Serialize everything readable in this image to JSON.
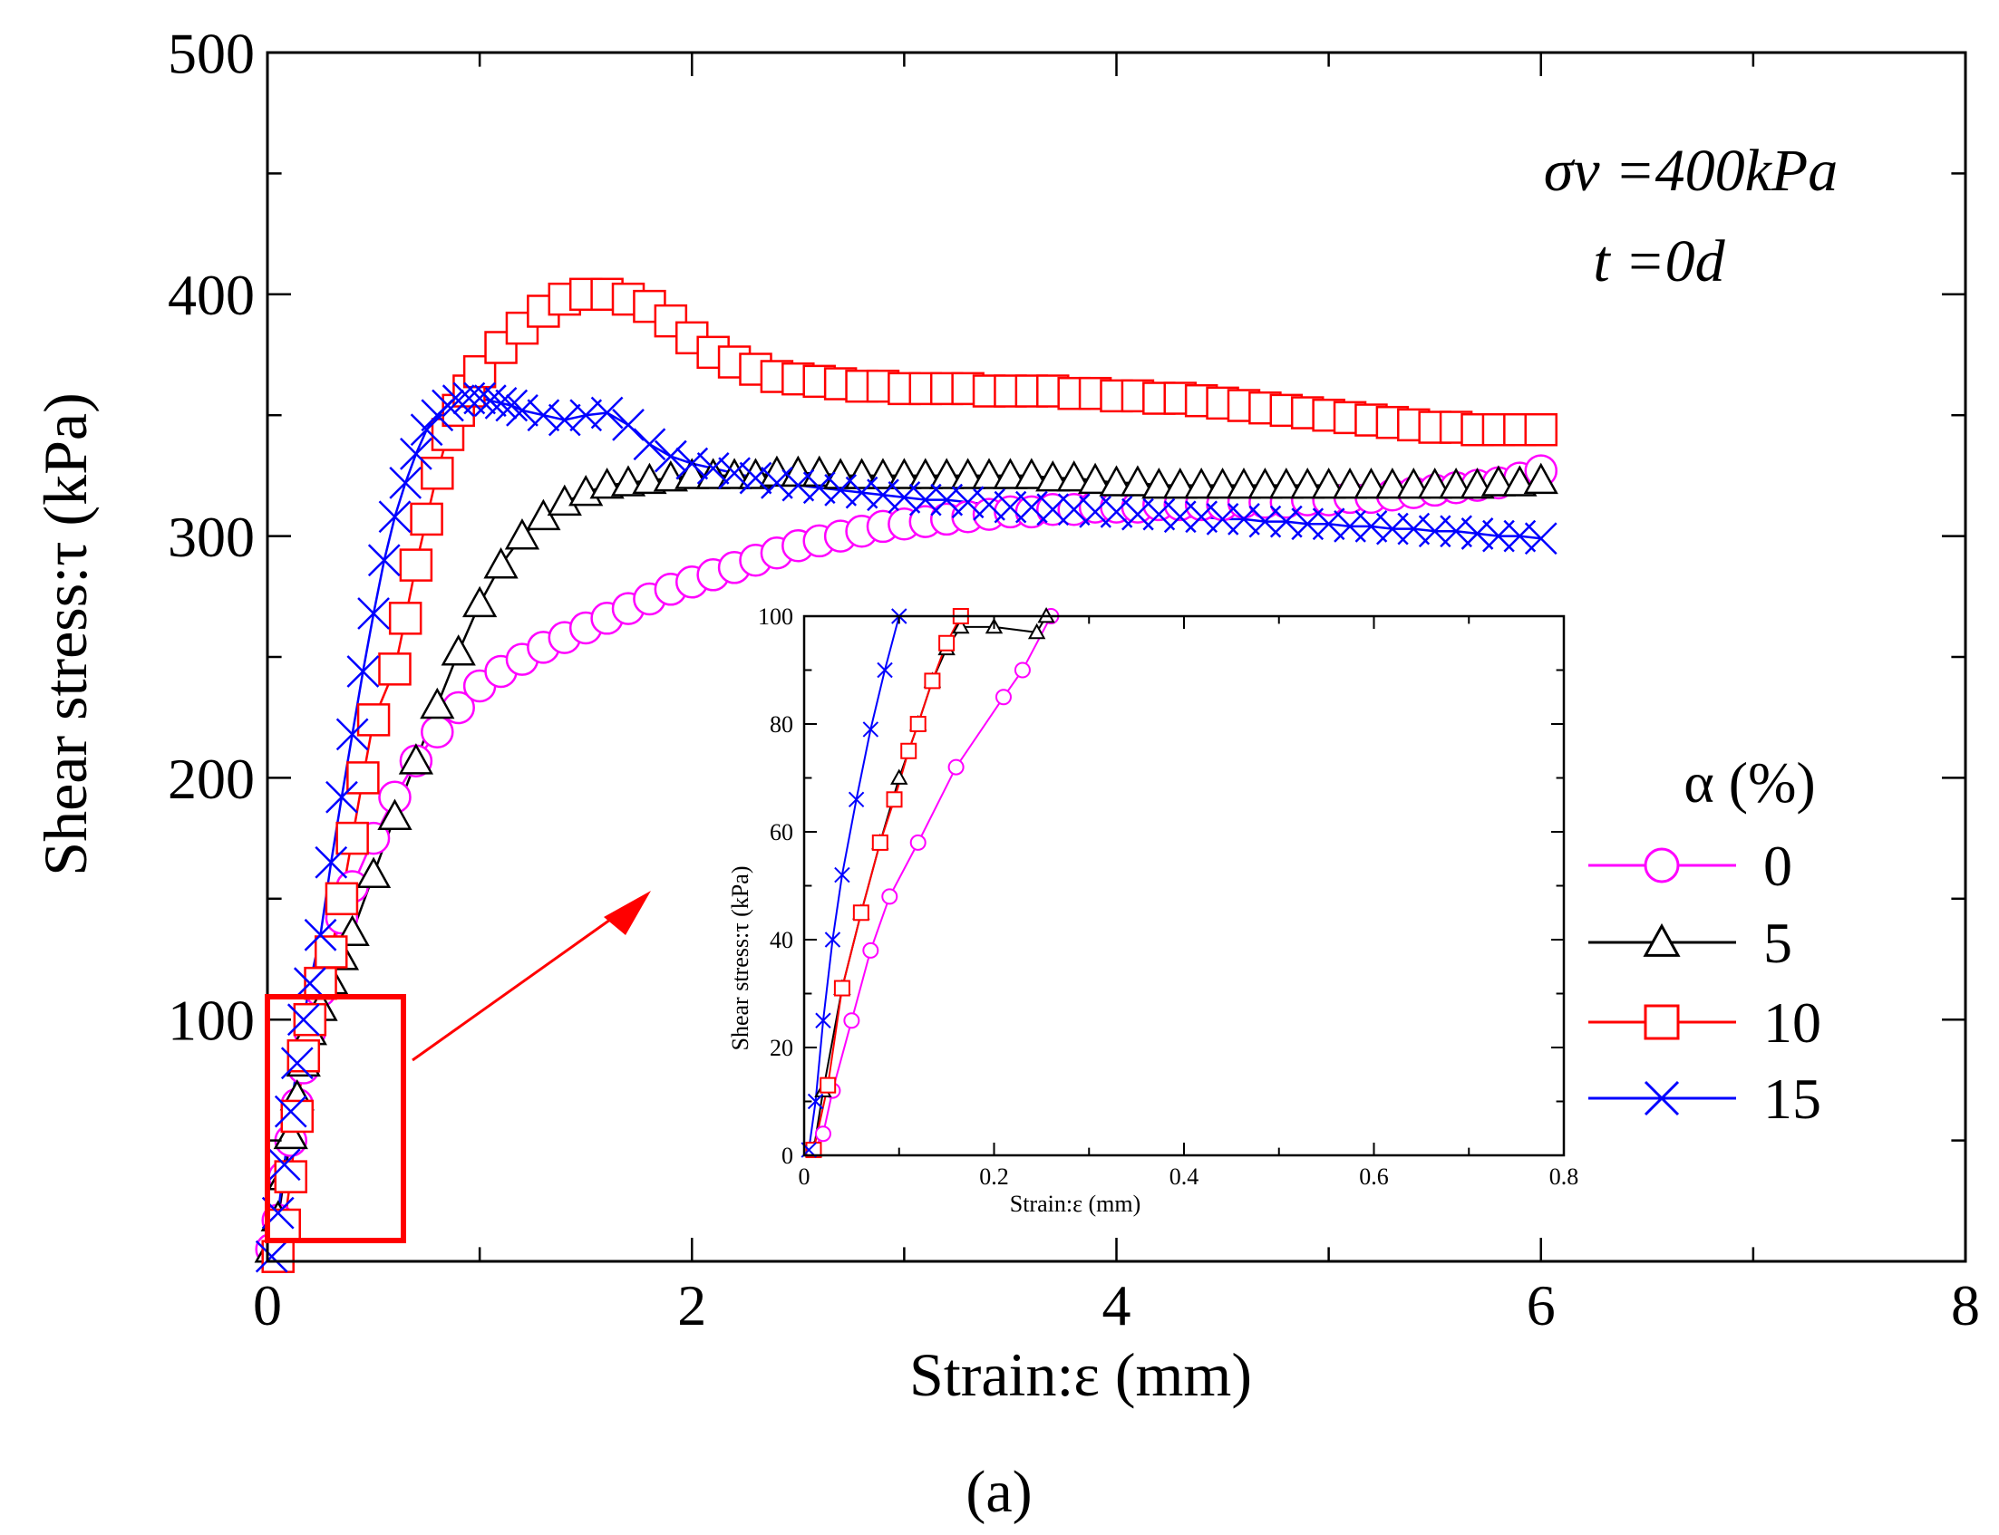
{
  "chart_data": [
    {
      "type": "line",
      "title": "",
      "xlabel": "Strain:ε (mm)",
      "ylabel": "Shear stress:τ (kPa)",
      "xlim": [
        0,
        8
      ],
      "ylim": [
        0,
        500
      ],
      "xticks": [
        0,
        2,
        4,
        6,
        8
      ],
      "yticks": [
        100,
        200,
        300,
        400,
        500
      ],
      "xtick_labels": [
        "0",
        "2",
        "4",
        "6",
        "8"
      ],
      "ytick_labels": [
        "100",
        "200",
        "300",
        "400",
        "500"
      ],
      "legend_title": "α (%)",
      "legend_position": "right",
      "annotation_sigma": "σv =400kPa",
      "annotation_time": "t =0d",
      "series": [
        {
          "name": "0",
          "color": "#ff00ff",
          "marker": "circle",
          "x": [
            0.02,
            0.05,
            0.08,
            0.11,
            0.14,
            0.17,
            0.2,
            0.25,
            0.3,
            0.35,
            0.4,
            0.5,
            0.6,
            0.7,
            0.8,
            0.9,
            1.0,
            1.1,
            1.2,
            1.3,
            1.4,
            1.5,
            1.6,
            1.7,
            1.8,
            1.9,
            2.0,
            2.1,
            2.2,
            2.3,
            2.4,
            2.5,
            2.6,
            2.7,
            2.8,
            2.9,
            3.0,
            3.1,
            3.2,
            3.3,
            3.4,
            3.5,
            3.6,
            3.7,
            3.8,
            3.9,
            4.0,
            4.1,
            4.2,
            4.3,
            4.4,
            4.5,
            4.6,
            4.7,
            4.8,
            4.9,
            5.0,
            5.1,
            5.2,
            5.3,
            5.4,
            5.5,
            5.6,
            5.7,
            5.8,
            5.9,
            6.0
          ],
          "y": [
            5,
            17,
            35,
            50,
            65,
            80,
            95,
            112,
            128,
            142,
            155,
            175,
            192,
            207,
            219,
            229,
            238,
            244,
            249,
            254,
            258,
            262,
            266,
            270,
            274,
            278,
            281,
            284,
            287,
            290,
            293,
            296,
            298,
            300,
            302,
            304,
            305,
            306,
            307,
            308,
            309,
            310,
            310,
            311,
            311,
            312,
            312,
            312,
            313,
            313,
            313,
            313,
            314,
            314,
            314,
            315,
            315,
            316,
            316,
            317,
            318,
            319,
            320,
            321,
            322,
            324,
            327
          ]
        },
        {
          "name": "5",
          "color": "#000000",
          "marker": "triangle",
          "x": [
            0.02,
            0.05,
            0.08,
            0.11,
            0.14,
            0.17,
            0.2,
            0.25,
            0.3,
            0.35,
            0.4,
            0.5,
            0.6,
            0.7,
            0.8,
            0.9,
            1.0,
            1.1,
            1.2,
            1.3,
            1.4,
            1.5,
            1.6,
            1.7,
            1.8,
            1.9,
            2.0,
            2.1,
            2.2,
            2.3,
            2.4,
            2.5,
            2.6,
            2.7,
            2.8,
            2.9,
            3.0,
            3.1,
            3.2,
            3.3,
            3.4,
            3.5,
            3.6,
            3.7,
            3.8,
            3.9,
            4.0,
            4.1,
            4.2,
            4.3,
            4.4,
            4.5,
            4.6,
            4.7,
            4.8,
            4.9,
            5.0,
            5.1,
            5.2,
            5.3,
            5.4,
            5.5,
            5.6,
            5.7,
            5.8,
            5.9,
            6.0
          ],
          "y": [
            5,
            18,
            35,
            52,
            68,
            82,
            95,
            105,
            116,
            126,
            136,
            160,
            184,
            207,
            230,
            252,
            272,
            288,
            300,
            308,
            314,
            318,
            321,
            322,
            323,
            324,
            325,
            325,
            325,
            325,
            326,
            326,
            326,
            325,
            325,
            325,
            325,
            325,
            325,
            325,
            325,
            325,
            325,
            324,
            324,
            323,
            322,
            322,
            321,
            321,
            321,
            321,
            321,
            321,
            321,
            321,
            321,
            321,
            321,
            321,
            321,
            321,
            321,
            321,
            322,
            322,
            323
          ]
        },
        {
          "name": "10",
          "color": "#ff0000",
          "marker": "square",
          "x": [
            0.05,
            0.08,
            0.11,
            0.14,
            0.17,
            0.2,
            0.25,
            0.3,
            0.35,
            0.4,
            0.45,
            0.5,
            0.6,
            0.65,
            0.7,
            0.75,
            0.8,
            0.85,
            0.9,
            0.95,
            1.0,
            1.1,
            1.2,
            1.3,
            1.4,
            1.5,
            1.6,
            1.7,
            1.8,
            1.9,
            2.0,
            2.1,
            2.2,
            2.3,
            2.4,
            2.5,
            2.6,
            2.7,
            2.8,
            2.9,
            3.0,
            3.1,
            3.2,
            3.3,
            3.4,
            3.5,
            3.6,
            3.7,
            3.8,
            3.9,
            4.0,
            4.1,
            4.2,
            4.3,
            4.4,
            4.5,
            4.6,
            4.7,
            4.8,
            4.9,
            5.0,
            5.1,
            5.2,
            5.3,
            5.4,
            5.5,
            5.6,
            5.7,
            5.8,
            5.9,
            6.0
          ],
          "y": [
            2,
            15,
            35,
            60,
            85,
            100,
            115,
            128,
            150,
            175,
            200,
            224,
            245,
            266,
            288,
            307,
            326,
            342,
            352,
            360,
            368,
            378,
            386,
            393,
            398,
            400,
            400,
            398,
            395,
            389,
            382,
            376,
            372,
            369,
            366,
            365,
            364,
            363,
            362,
            362,
            361,
            361,
            361,
            361,
            360,
            360,
            360,
            360,
            359,
            359,
            358,
            358,
            357,
            357,
            356,
            355,
            354,
            353,
            352,
            351,
            350,
            349,
            348,
            347,
            346,
            345,
            345,
            344,
            344,
            344,
            344
          ]
        },
        {
          "name": "15",
          "color": "#0000ff",
          "marker": "x",
          "x": [
            0.02,
            0.05,
            0.08,
            0.11,
            0.14,
            0.17,
            0.2,
            0.25,
            0.3,
            0.35,
            0.4,
            0.45,
            0.5,
            0.55,
            0.6,
            0.65,
            0.7,
            0.75,
            0.8,
            0.85,
            0.9,
            0.95,
            1.0,
            1.05,
            1.1,
            1.15,
            1.2,
            1.3,
            1.4,
            1.5,
            1.6,
            1.7,
            1.8,
            1.9,
            2.0,
            2.1,
            2.2,
            2.3,
            2.4,
            2.5,
            2.6,
            2.7,
            2.8,
            2.9,
            3.0,
            3.1,
            3.2,
            3.3,
            3.4,
            3.5,
            3.6,
            3.7,
            3.8,
            3.9,
            4.0,
            4.1,
            4.2,
            4.3,
            4.4,
            4.5,
            4.6,
            4.7,
            4.8,
            4.9,
            5.0,
            5.1,
            5.2,
            5.3,
            5.4,
            5.5,
            5.6,
            5.7,
            5.8,
            5.9,
            6.0
          ],
          "y": [
            2,
            20,
            40,
            62,
            82,
            100,
            115,
            135,
            165,
            192,
            218,
            244,
            268,
            290,
            308,
            322,
            334,
            344,
            350,
            354,
            356,
            357,
            357,
            356,
            355,
            354,
            352,
            350,
            348,
            350,
            351,
            346,
            338,
            333,
            330,
            328,
            326,
            324,
            322,
            321,
            320,
            319,
            318,
            317,
            316,
            315,
            315,
            314,
            313,
            312,
            312,
            311,
            311,
            310,
            310,
            309,
            309,
            308,
            308,
            307,
            307,
            306,
            306,
            305,
            305,
            304,
            304,
            303,
            303,
            302,
            302,
            301,
            300,
            300,
            299
          ]
        }
      ]
    },
    {
      "type": "line",
      "title": "",
      "xlabel": "Strain:ε (mm)",
      "ylabel": "Shear stress:τ (kPa)",
      "xlim": [
        0,
        0.8
      ],
      "ylim": [
        0,
        100
      ],
      "xticks": [
        0,
        0.2,
        0.4,
        0.6,
        0.8
      ],
      "yticks": [
        0,
        20,
        40,
        60,
        80,
        100
      ],
      "xtick_labels": [
        "0",
        "0.2",
        "0.4",
        "0.6",
        "0.8"
      ],
      "ytick_labels": [
        "0",
        "20",
        "40",
        "60",
        "80",
        "100"
      ],
      "series": [
        {
          "name": "0",
          "color": "#ff00ff",
          "marker": "circle",
          "x": [
            0.01,
            0.02,
            0.03,
            0.05,
            0.07,
            0.09,
            0.12,
            0.16,
            0.21,
            0.23,
            0.26
          ],
          "y": [
            1,
            4,
            12,
            25,
            38,
            48,
            58,
            72,
            85,
            90,
            100
          ]
        },
        {
          "name": "5",
          "color": "#000000",
          "marker": "triangle",
          "x": [
            0.01,
            0.02,
            0.04,
            0.06,
            0.08,
            0.1,
            0.12,
            0.135,
            0.15,
            0.165,
            0.2,
            0.245,
            0.255
          ],
          "y": [
            1,
            12,
            31,
            45,
            58,
            70,
            80,
            88,
            94,
            98,
            98,
            97,
            100
          ]
        },
        {
          "name": "10",
          "color": "#ff0000",
          "marker": "square",
          "x": [
            0.01,
            0.025,
            0.04,
            0.06,
            0.08,
            0.095,
            0.11,
            0.12,
            0.135,
            0.15,
            0.165
          ],
          "y": [
            1,
            13,
            31,
            45,
            58,
            66,
            75,
            80,
            88,
            95,
            100
          ]
        },
        {
          "name": "15",
          "color": "#0000ff",
          "marker": "x",
          "x": [
            0.005,
            0.012,
            0.02,
            0.03,
            0.04,
            0.055,
            0.07,
            0.085,
            0.1
          ],
          "y": [
            1,
            10,
            25,
            40,
            52,
            66,
            79,
            90,
            100
          ]
        }
      ]
    }
  ],
  "panel_label": "(a)"
}
